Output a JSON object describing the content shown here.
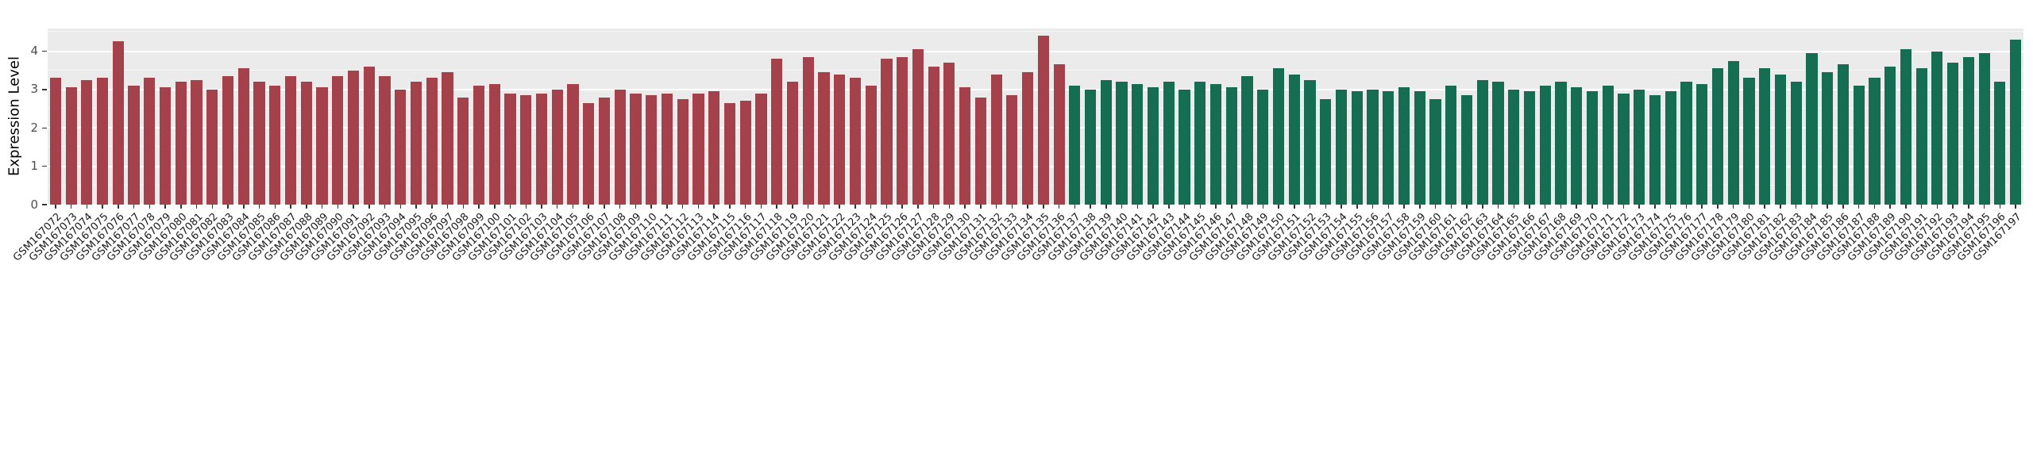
{
  "chart": {
    "ylabel": "Expression Level",
    "yticks": [
      0,
      1,
      2,
      3,
      4
    ]
  },
  "chart_data": {
    "type": "bar",
    "title": "",
    "xlabel": "",
    "ylabel": "Expression Level",
    "ylim": [
      0,
      4.59
    ],
    "grid": "on",
    "legend": "none",
    "plot_background": "#EBEBEB",
    "group_colors": [
      "#A5414B",
      "#156E52"
    ],
    "group_split_index": 65,
    "categories": [
      "GSM167072",
      "GSM167073",
      "GSM167074",
      "GSM167075",
      "GSM167076",
      "GSM167077",
      "GSM167078",
      "GSM167079",
      "GSM167080",
      "GSM167081",
      "GSM167082",
      "GSM167083",
      "GSM167084",
      "GSM167085",
      "GSM167086",
      "GSM167087",
      "GSM167088",
      "GSM167089",
      "GSM167090",
      "GSM167091",
      "GSM167092",
      "GSM167093",
      "GSM167094",
      "GSM167095",
      "GSM167096",
      "GSM167097",
      "GSM167098",
      "GSM167099",
      "GSM167100",
      "GSM167101",
      "GSM167102",
      "GSM167103",
      "GSM167104",
      "GSM167105",
      "GSM167106",
      "GSM167107",
      "GSM167108",
      "GSM167109",
      "GSM167110",
      "GSM167111",
      "GSM167112",
      "GSM167113",
      "GSM167114",
      "GSM167115",
      "GSM167116",
      "GSM167117",
      "GSM167118",
      "GSM167119",
      "GSM167120",
      "GSM167121",
      "GSM167122",
      "GSM167123",
      "GSM167124",
      "GSM167125",
      "GSM167126",
      "GSM167127",
      "GSM167128",
      "GSM167129",
      "GSM167130",
      "GSM167131",
      "GSM167132",
      "GSM167133",
      "GSM167134",
      "GSM167135",
      "GSM167136",
      "GSM167137",
      "GSM167138",
      "GSM167139",
      "GSM167140",
      "GSM167141",
      "GSM167142",
      "GSM167143",
      "GSM167144",
      "GSM167145",
      "GSM167146",
      "GSM167147",
      "GSM167148",
      "GSM167149",
      "GSM167150",
      "GSM167151",
      "GSM167152",
      "GSM167153",
      "GSM167154",
      "GSM167155",
      "GSM167156",
      "GSM167157",
      "GSM167158",
      "GSM167159",
      "GSM167160",
      "GSM167161",
      "GSM167162",
      "GSM167163",
      "GSM167164",
      "GSM167165",
      "GSM167166",
      "GSM167167",
      "GSM167168",
      "GSM167169",
      "GSM167170",
      "GSM167171",
      "GSM167172",
      "GSM167173",
      "GSM167174",
      "GSM167175",
      "GSM167176",
      "GSM167177",
      "GSM167178",
      "GSM167179",
      "GSM167180",
      "GSM167181",
      "GSM167182",
      "GSM167183",
      "GSM167184",
      "GSM167185",
      "GSM167186",
      "GSM167187",
      "GSM167188",
      "GSM167189",
      "GSM167190",
      "GSM167191",
      "GSM167192",
      "GSM167193",
      "GSM167194",
      "GSM167195",
      "GSM167196",
      "GSM167197"
    ],
    "values": [
      3.3,
      3.05,
      3.25,
      3.3,
      4.25,
      3.1,
      3.3,
      3.05,
      3.2,
      3.25,
      3.0,
      3.35,
      3.55,
      3.2,
      3.1,
      3.35,
      3.2,
      3.05,
      3.35,
      3.5,
      3.6,
      3.35,
      3.0,
      3.2,
      3.3,
      3.45,
      2.8,
      3.1,
      3.15,
      2.9,
      2.85,
      2.9,
      3.0,
      3.15,
      2.65,
      2.8,
      3.0,
      2.9,
      2.85,
      2.9,
      2.75,
      2.9,
      2.95,
      2.65,
      2.7,
      2.9,
      3.8,
      3.2,
      3.85,
      3.45,
      3.4,
      3.3,
      3.1,
      3.8,
      3.85,
      4.05,
      3.6,
      3.7,
      3.05,
      2.8,
      3.4,
      2.85,
      3.45,
      4.4,
      3.65,
      3.1,
      3.0,
      3.25,
      3.2,
      3.15,
      3.05,
      3.2,
      3.0,
      3.2,
      3.15,
      3.05,
      3.35,
      3.0,
      3.55,
      3.4,
      3.25,
      2.75,
      3.0,
      2.95,
      3.0,
      2.95,
      3.05,
      2.95,
      2.75,
      3.1,
      2.85,
      3.25,
      3.2,
      3.0,
      2.95,
      3.1,
      3.2,
      3.05,
      2.95,
      3.1,
      2.9,
      3.0,
      2.85,
      2.95,
      3.2,
      3.15,
      3.55,
      3.75,
      3.3,
      3.55,
      3.4,
      3.2,
      3.95,
      3.45,
      3.65,
      3.1,
      3.3,
      3.6,
      4.05,
      3.55,
      4.0,
      3.7,
      3.85,
      3.95,
      3.2,
      4.3
    ]
  }
}
